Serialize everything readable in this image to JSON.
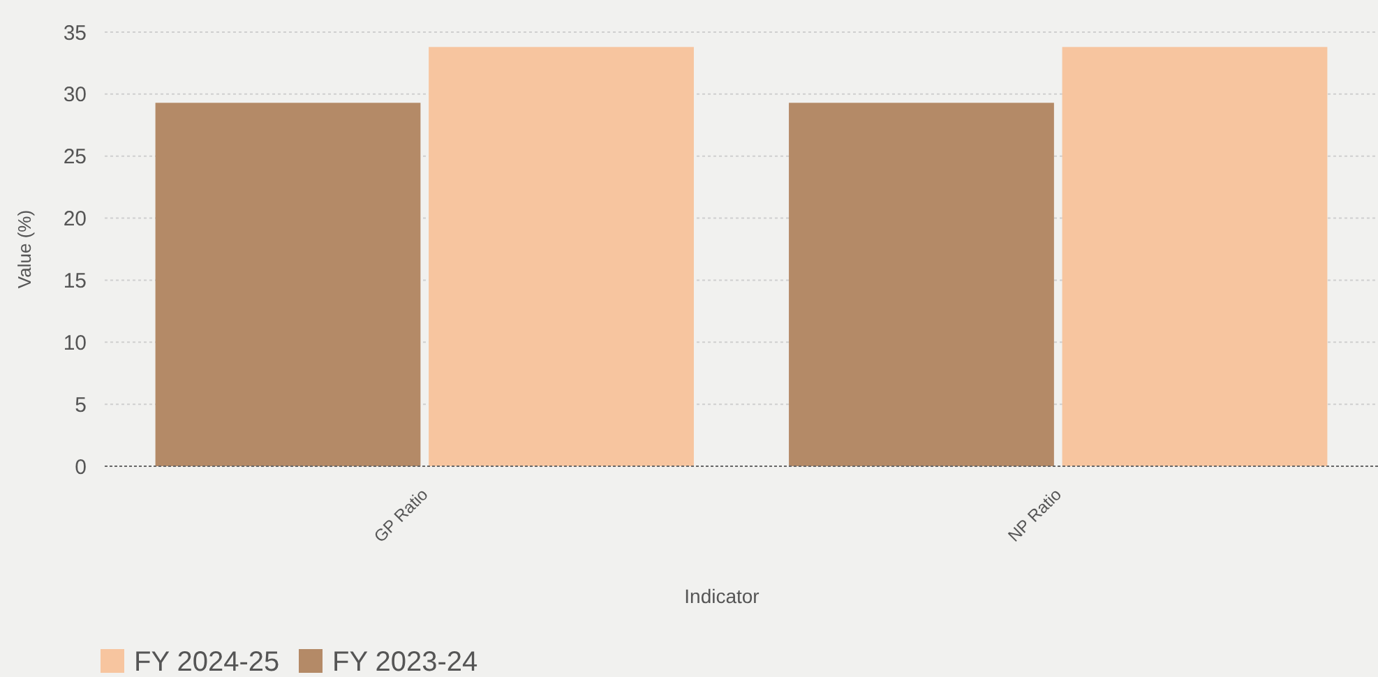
{
  "chart_data": {
    "type": "bar",
    "xlabel": "Indicator",
    "ylabel": "Value (%)",
    "categories": [
      "GP Ratio",
      "NP Ratio"
    ],
    "series": [
      {
        "name": "FY 2023-24",
        "color": "#b48a67",
        "values": [
          29.3,
          29.3
        ]
      },
      {
        "name": "FY 2024-25",
        "color": "#f7c59f",
        "values": [
          33.8,
          33.8
        ]
      }
    ],
    "ylim": [
      0,
      35
    ],
    "yticks": [
      0,
      5,
      10,
      15,
      20,
      25,
      30,
      35
    ],
    "grid": "y",
    "legend": "bottom left"
  }
}
